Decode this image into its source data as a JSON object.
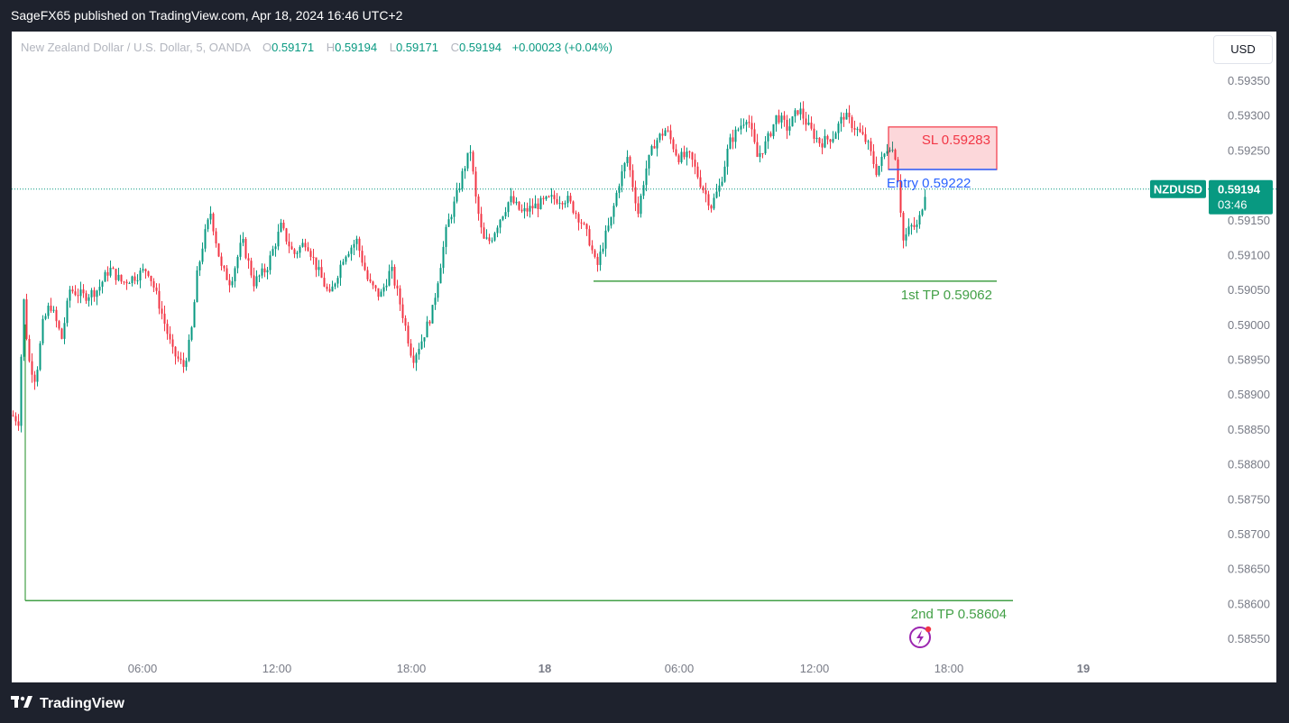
{
  "header": {
    "title": "SageFX65 published on TradingView.com, Apr 18, 2024 16:46 UTC+2"
  },
  "legend": {
    "symbol": "New Zealand Dollar / U.S. Dollar, 5, OANDA",
    "o_label": "O",
    "o": "0.59171",
    "h_label": "H",
    "h": "0.59194",
    "l_label": "L",
    "l": "0.59171",
    "c_label": "C",
    "c": "0.59194",
    "change": "+0.00023 (+0.04%)"
  },
  "currency_button": "USD",
  "price_tag": {
    "symbol": "NZDUSD",
    "price": "0.59194",
    "countdown": "03:46"
  },
  "annotations": {
    "sl": "SL  0.59283",
    "entry": "Entry  0.59222",
    "tp1": "1st TP 0.59062",
    "tp2": "2nd TP 0.58604"
  },
  "footer": {
    "brand": "TradingView"
  },
  "colors": {
    "up": "#089981",
    "down": "#f23645",
    "tp": "#43a047",
    "entry": "#2962ff",
    "sl": "#f23645"
  },
  "chart_data": {
    "type": "candlestick",
    "symbol": "NZDUSD",
    "interval": "5",
    "exchange": "OANDA",
    "ylim": [
      0.5852,
      0.5938
    ],
    "y_ticks": [
      "0.59350",
      "0.59300",
      "0.59250",
      "0.59200",
      "0.59150",
      "0.59100",
      "0.59050",
      "0.59000",
      "0.58950",
      "0.58900",
      "0.58850",
      "0.58800",
      "0.58750",
      "0.58700",
      "0.58650",
      "0.58600",
      "0.58550"
    ],
    "x_ticks": [
      "06:00",
      "12:00",
      "18:00",
      "18",
      "06:00",
      "12:00",
      "18:00",
      "19"
    ],
    "last_price": 0.59194,
    "levels": [
      {
        "name": "SL",
        "value": 0.59283
      },
      {
        "name": "Entry",
        "value": 0.59222
      },
      {
        "name": "1st TP",
        "value": 0.59062
      },
      {
        "name": "2nd TP",
        "value": 0.58604
      }
    ],
    "close_path": [
      [
        0,
        0.5887
      ],
      [
        8,
        0.5886
      ],
      [
        12,
        0.5905
      ],
      [
        18,
        0.5895
      ],
      [
        26,
        0.5892
      ],
      [
        34,
        0.59
      ],
      [
        42,
        0.5903
      ],
      [
        55,
        0.5898
      ],
      [
        64,
        0.5905
      ],
      [
        80,
        0.5904
      ],
      [
        95,
        0.5905
      ],
      [
        108,
        0.5908
      ],
      [
        122,
        0.5906
      ],
      [
        138,
        0.5907
      ],
      [
        150,
        0.5908
      ],
      [
        158,
        0.5905
      ],
      [
        165,
        0.5902
      ],
      [
        178,
        0.5896
      ],
      [
        190,
        0.5894
      ],
      [
        198,
        0.5898
      ],
      [
        205,
        0.5907
      ],
      [
        212,
        0.5912
      ],
      [
        220,
        0.5916
      ],
      [
        232,
        0.5908
      ],
      [
        242,
        0.5906
      ],
      [
        255,
        0.5912
      ],
      [
        268,
        0.5906
      ],
      [
        282,
        0.5908
      ],
      [
        298,
        0.5914
      ],
      [
        312,
        0.591
      ],
      [
        326,
        0.5912
      ],
      [
        338,
        0.5908
      ],
      [
        352,
        0.5904
      ],
      [
        368,
        0.591
      ],
      [
        382,
        0.5912
      ],
      [
        395,
        0.5906
      ],
      [
        408,
        0.5904
      ],
      [
        420,
        0.5908
      ],
      [
        432,
        0.5902
      ],
      [
        444,
        0.5895
      ],
      [
        455,
        0.5898
      ],
      [
        466,
        0.5902
      ],
      [
        474,
        0.5908
      ],
      [
        482,
        0.5914
      ],
      [
        492,
        0.5918
      ],
      [
        500,
        0.5922
      ],
      [
        508,
        0.5925
      ],
      [
        514,
        0.5918
      ],
      [
        522,
        0.5912
      ],
      [
        530,
        0.5912
      ],
      [
        540,
        0.5915
      ],
      [
        552,
        0.5918
      ],
      [
        565,
        0.5916
      ],
      [
        580,
        0.5917
      ],
      [
        598,
        0.5918
      ],
      [
        615,
        0.5918
      ],
      [
        630,
        0.5915
      ],
      [
        640,
        0.5912
      ],
      [
        648,
        0.5908
      ],
      [
        656,
        0.5912
      ],
      [
        664,
        0.5915
      ],
      [
        672,
        0.592
      ],
      [
        682,
        0.5924
      ],
      [
        694,
        0.5916
      ],
      [
        702,
        0.5922
      ],
      [
        712,
        0.5926
      ],
      [
        725,
        0.5928
      ],
      [
        738,
        0.5924
      ],
      [
        752,
        0.5924
      ],
      [
        764,
        0.592
      ],
      [
        775,
        0.5917
      ],
      [
        785,
        0.592
      ],
      [
        795,
        0.5926
      ],
      [
        805,
        0.5928
      ],
      [
        815,
        0.593
      ],
      [
        826,
        0.5924
      ],
      [
        836,
        0.5926
      ],
      [
        848,
        0.593
      ],
      [
        860,
        0.5928
      ],
      [
        872,
        0.5931
      ],
      [
        884,
        0.5928
      ],
      [
        896,
        0.5926
      ],
      [
        910,
        0.5927
      ],
      [
        922,
        0.593
      ],
      [
        936,
        0.5928
      ],
      [
        948,
        0.5926
      ],
      [
        958,
        0.5922
      ],
      [
        966,
        0.5924
      ],
      [
        972,
        0.5926
      ],
      [
        980,
        0.5924
      ],
      [
        988,
        0.5912
      ],
      [
        996,
        0.5914
      ],
      [
        1004,
        0.5914
      ],
      [
        1012,
        0.5919
      ]
    ]
  }
}
